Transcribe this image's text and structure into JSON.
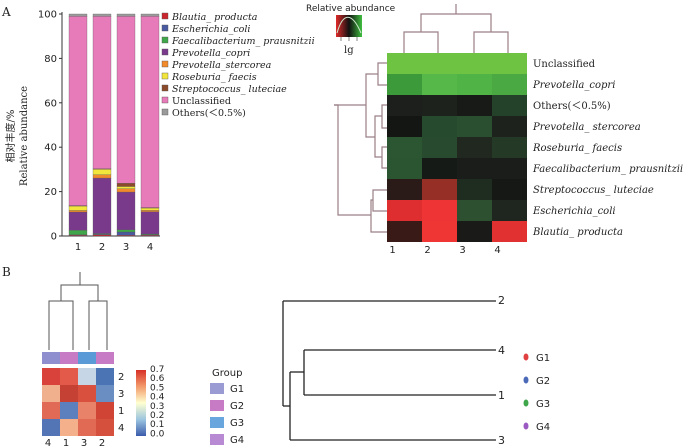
{
  "panels": {
    "a": "A",
    "b": "B"
  },
  "stacked_bar": {
    "ylabel_cn": "相对丰度/%",
    "ylabel_en": "Relative abundance",
    "legend": [
      {
        "label": "Blautia_ producta",
        "color": "#c8252d",
        "italic": true
      },
      {
        "label": "Escherichia_coli",
        "color": "#4a5aa0",
        "italic": true
      },
      {
        "label": "Faecalibacterium_ prausnitzii",
        "color": "#3fa649",
        "italic": true
      },
      {
        "label": "Prevotella_copri",
        "color": "#7a3a8c",
        "italic": true
      },
      {
        "label": "Prevotella_stercorea",
        "color": "#f08a2c",
        "italic": true
      },
      {
        "label": "Roseburia_ faecis",
        "color": "#f2e53c",
        "italic": true
      },
      {
        "label": "Streptococcus_ luteciae",
        "color": "#8b4a2a",
        "italic": true
      },
      {
        "label": "Unclassified",
        "color": "#e77ab8",
        "italic": false
      },
      {
        "label": "Others(＜0.5%)",
        "color": "#9a9a9a",
        "italic": false
      }
    ]
  },
  "heatmap": {
    "title": "Relative abundance",
    "key_label": "lg",
    "rows": [
      "Unclassified",
      "Prevotella_copri",
      "Others(＜0.5%)",
      "Prevotella_ stercorea",
      "Roseburia_ faecis",
      "Faecalibacterium_ prausnitzii",
      "Streptococcus_ luteciae",
      "Escherichia_coli",
      "Blautia_ producta"
    ],
    "row_italic": [
      false,
      true,
      false,
      true,
      true,
      true,
      true,
      true,
      true
    ],
    "cols": [
      "1",
      "2",
      "3",
      "4"
    ],
    "colors": [
      [
        "#6fc343",
        "#6fc343",
        "#6fc343",
        "#6fc343"
      ],
      [
        "#3c9a3a",
        "#55b849",
        "#4fb445",
        "#4aa942"
      ],
      [
        "#1c1f1c",
        "#1d231c",
        "#171a17",
        "#24422a"
      ],
      [
        "#141614",
        "#264a2d",
        "#2a4f30",
        "#1d221d"
      ],
      [
        "#2c5632",
        "#284a2e",
        "#20281f",
        "#243a27"
      ],
      [
        "#2a5530",
        "#151a16",
        "#1a1d1a",
        "#1a1d1a"
      ],
      [
        "#2a1b18",
        "#963027",
        "#1f2d20",
        "#161816"
      ],
      [
        "#df2e30",
        "#ee3434",
        "#2c5030",
        "#1f251f"
      ],
      [
        "#3a1a17",
        "#f03535",
        "#1a1a18",
        "#e23131"
      ]
    ]
  },
  "corr": {
    "top_labels": [
      "4",
      "1",
      "3",
      "2"
    ],
    "right_labels": [
      "2",
      "3",
      "1",
      "4"
    ],
    "scale_ticks": [
      "0.7",
      "0.6",
      "0.5",
      "0.4",
      "0.3",
      "0.2",
      "0.1",
      "0.0"
    ],
    "cells": [
      [
        "#d9413b",
        "#e35a4a",
        "#c7d6e6",
        "#4a74b4"
      ],
      [
        "#f0b08e",
        "#c54133",
        "#d9503e",
        "#6a8dc2"
      ],
      [
        "#e06a55",
        "#5b80bd",
        "#e8836a",
        "#d04435"
      ],
      [
        "#5375b6",
        "#f4b08b",
        "#e06a53",
        "#d6513d"
      ]
    ],
    "group_colors": [
      "#8f8fd0",
      "#c77bc4",
      "#5a9ad6",
      "#c77bc4"
    ]
  },
  "group_legend": {
    "title": "Group",
    "items": [
      {
        "label": "G1",
        "color": "#9b9bd4"
      },
      {
        "label": "G2",
        "color": "#c77bc4"
      },
      {
        "label": "G3",
        "color": "#6aa6de"
      },
      {
        "label": "G4",
        "color": "#b98ad4"
      }
    ]
  },
  "dendro_tree": {
    "leaves": [
      "2",
      "4",
      "1",
      "3"
    ]
  },
  "dot_legend": [
    {
      "label": "G1",
      "color": "#e04040"
    },
    {
      "label": "G2",
      "color": "#4a6ab8"
    },
    {
      "label": "G3",
      "color": "#3fa649"
    },
    {
      "label": "G4",
      "color": "#9a5ac2"
    }
  ],
  "chart_data": {
    "type": "bar",
    "stacked": true,
    "categories": [
      "1",
      "2",
      "3",
      "4"
    ],
    "ylim": [
      0,
      100
    ],
    "yticks": [
      "0",
      "20",
      "40",
      "60",
      "80",
      "100"
    ],
    "series": [
      {
        "name": "Blautia_ producta",
        "values": [
          0.3,
          0.5,
          0.3,
          0.3
        ]
      },
      {
        "name": "Escherichia_coli",
        "values": [
          0.3,
          0.3,
          1.5,
          0.3
        ]
      },
      {
        "name": "Faecalibacterium_ prausnitzii",
        "values": [
          2.0,
          0.3,
          1.0,
          0.3
        ]
      },
      {
        "name": "Prevotella_copri",
        "values": [
          8.2,
          25.0,
          17.0,
          10.0
        ]
      },
      {
        "name": "Prevotella_stercorea",
        "values": [
          0.7,
          1.5,
          1.5,
          0.7
        ]
      },
      {
        "name": "Roseburia_ faecis",
        "values": [
          2.0,
          2.5,
          1.0,
          1.0
        ]
      },
      {
        "name": "Streptococcus_ luteciae",
        "values": [
          0.2,
          0.2,
          1.5,
          0.2
        ]
      },
      {
        "name": "Unclassified",
        "values": [
          85.3,
          68.7,
          75.2,
          86.2
        ]
      },
      {
        "name": "Others(＜0.5%)",
        "values": [
          1.0,
          1.0,
          1.0,
          1.0
        ]
      }
    ]
  }
}
